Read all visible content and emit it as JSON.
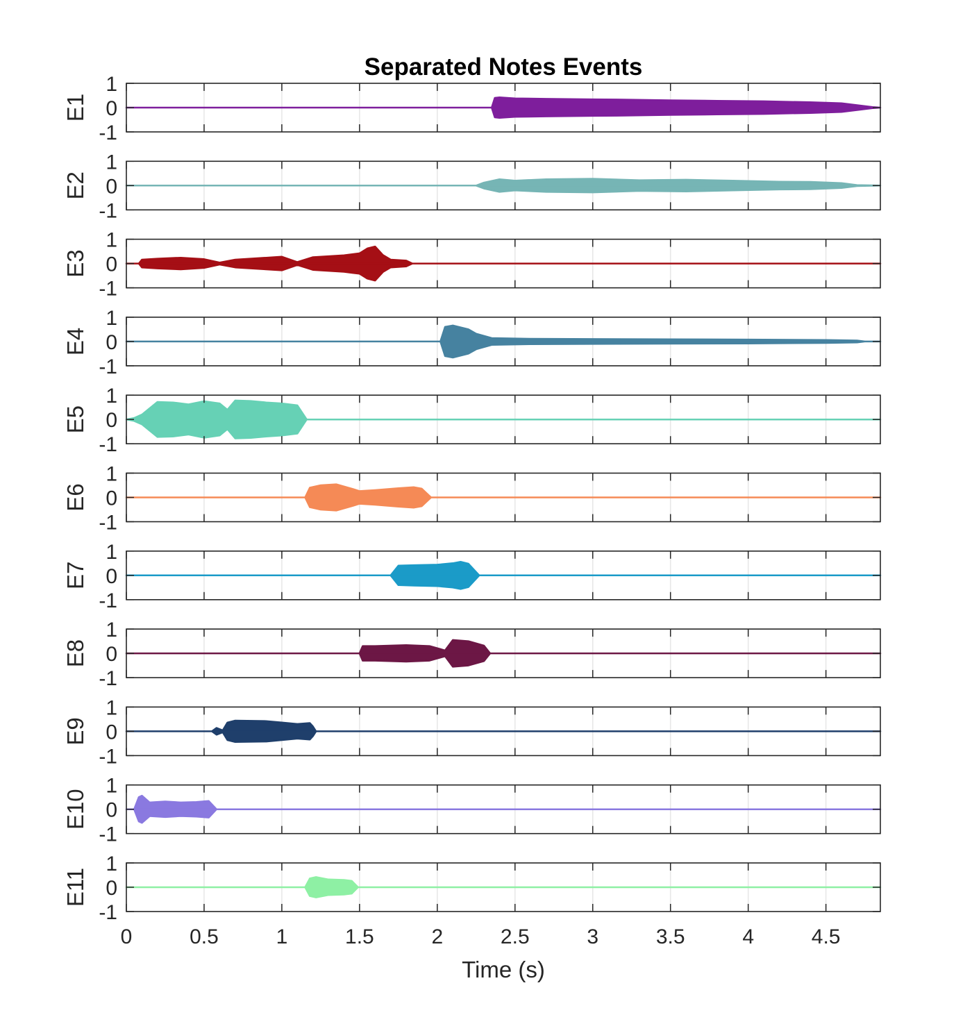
{
  "chart_data": {
    "type": "line",
    "title": "Separated Notes Events",
    "xlabel": "Time (s)",
    "xlim": [
      0,
      4.85
    ],
    "x_ticks": [
      0,
      0.5,
      1,
      1.5,
      2,
      2.5,
      3,
      3.5,
      4,
      4.5
    ],
    "x_tick_labels": [
      "0",
      "0.5",
      "1",
      "1.5",
      "2",
      "2.5",
      "3",
      "3.5",
      "4",
      "4.5"
    ],
    "ylim": [
      -1,
      1
    ],
    "y_ticks": [
      1,
      0,
      -1
    ],
    "y_tick_labels": [
      "1",
      "0",
      "-1"
    ],
    "grid": true,
    "legend": "none",
    "series": [
      {
        "name": "E1",
        "color": "#7E1E9C",
        "x": [
          0,
          2.35,
          2.37,
          2.4,
          2.5,
          2.7,
          3.0,
          3.2,
          3.5,
          3.8,
          4.1,
          4.4,
          4.6,
          4.8,
          4.85
        ],
        "amplitude": [
          0,
          0,
          0.4,
          0.42,
          0.38,
          0.36,
          0.34,
          0.33,
          0.3,
          0.28,
          0.26,
          0.22,
          0.18,
          0.02,
          0
        ]
      },
      {
        "name": "E2",
        "color": "#76B5B5",
        "x": [
          0,
          2.25,
          2.3,
          2.4,
          2.5,
          2.7,
          3.0,
          3.3,
          3.6,
          3.9,
          4.2,
          4.4,
          4.6,
          4.7,
          4.85
        ],
        "amplitude": [
          0,
          0,
          0.12,
          0.26,
          0.2,
          0.26,
          0.28,
          0.22,
          0.24,
          0.2,
          0.16,
          0.15,
          0.1,
          0.02,
          0
        ]
      },
      {
        "name": "E3",
        "color": "#A50F15",
        "x": [
          0,
          0.08,
          0.1,
          0.2,
          0.35,
          0.5,
          0.6,
          0.7,
          0.9,
          1.0,
          1.1,
          1.2,
          1.3,
          1.4,
          1.5,
          1.55,
          1.6,
          1.65,
          1.7,
          1.8,
          1.84,
          4.85
        ],
        "amplitude": [
          0,
          0,
          0.16,
          0.2,
          0.24,
          0.18,
          0.04,
          0.16,
          0.24,
          0.28,
          0.06,
          0.26,
          0.3,
          0.34,
          0.42,
          0.62,
          0.7,
          0.35,
          0.16,
          0.12,
          0,
          0
        ]
      },
      {
        "name": "E4",
        "color": "#4682A0",
        "x": [
          0,
          2.02,
          2.05,
          2.1,
          2.2,
          2.25,
          2.35,
          2.6,
          3.0,
          3.5,
          4.0,
          4.5,
          4.7,
          4.75,
          4.85
        ],
        "amplitude": [
          0,
          0,
          0.6,
          0.66,
          0.5,
          0.32,
          0.14,
          0.11,
          0.1,
          0.09,
          0.08,
          0.06,
          0.04,
          0,
          0
        ]
      },
      {
        "name": "E5",
        "color": "#66D1B5",
        "x": [
          0,
          0.05,
          0.1,
          0.2,
          0.3,
          0.4,
          0.5,
          0.6,
          0.65,
          0.7,
          0.8,
          0.9,
          1.0,
          1.1,
          1.16,
          4.85
        ],
        "amplitude": [
          0,
          0.06,
          0.2,
          0.72,
          0.7,
          0.62,
          0.75,
          0.66,
          0.4,
          0.78,
          0.76,
          0.7,
          0.66,
          0.58,
          0,
          0
        ]
      },
      {
        "name": "E6",
        "color": "#F58A56",
        "x": [
          0,
          1.15,
          1.18,
          1.25,
          1.35,
          1.45,
          1.5,
          1.6,
          1.75,
          1.85,
          1.9,
          1.96,
          4.85
        ],
        "amplitude": [
          0,
          0,
          0.4,
          0.5,
          0.54,
          0.36,
          0.26,
          0.3,
          0.38,
          0.42,
          0.36,
          0,
          0
        ]
      },
      {
        "name": "E7",
        "color": "#1B9BC8",
        "x": [
          0,
          1.7,
          1.75,
          1.85,
          2.0,
          2.1,
          2.15,
          2.2,
          2.27,
          4.85
        ],
        "amplitude": [
          0,
          0,
          0.4,
          0.42,
          0.44,
          0.5,
          0.56,
          0.48,
          0,
          0
        ]
      },
      {
        "name": "E8",
        "color": "#6C1745",
        "x": [
          0,
          1.5,
          1.52,
          1.6,
          1.8,
          1.95,
          2.05,
          2.1,
          2.2,
          2.3,
          2.34,
          4.85
        ],
        "amplitude": [
          0,
          0,
          0.3,
          0.3,
          0.34,
          0.3,
          0.12,
          0.55,
          0.5,
          0.32,
          0,
          0
        ]
      },
      {
        "name": "E9",
        "color": "#1F3F6B",
        "x": [
          0,
          0.55,
          0.58,
          0.62,
          0.65,
          0.7,
          0.9,
          1.0,
          1.1,
          1.18,
          1.2,
          1.22,
          4.85
        ],
        "amplitude": [
          0,
          0,
          0.14,
          0.04,
          0.36,
          0.44,
          0.42,
          0.36,
          0.3,
          0.34,
          0.2,
          0,
          0
        ]
      },
      {
        "name": "E10",
        "color": "#8A79E0",
        "x": [
          0,
          0.05,
          0.08,
          0.1,
          0.15,
          0.25,
          0.35,
          0.45,
          0.53,
          0.58,
          4.85
        ],
        "amplitude": [
          0,
          0,
          0.5,
          0.56,
          0.28,
          0.32,
          0.28,
          0.3,
          0.34,
          0,
          0
        ]
      },
      {
        "name": "E11",
        "color": "#8EF0A4",
        "x": [
          0,
          1.15,
          1.18,
          1.22,
          1.3,
          1.4,
          1.45,
          1.49,
          4.85
        ],
        "amplitude": [
          0,
          0,
          0.36,
          0.42,
          0.32,
          0.3,
          0.26,
          0,
          0
        ]
      }
    ]
  }
}
